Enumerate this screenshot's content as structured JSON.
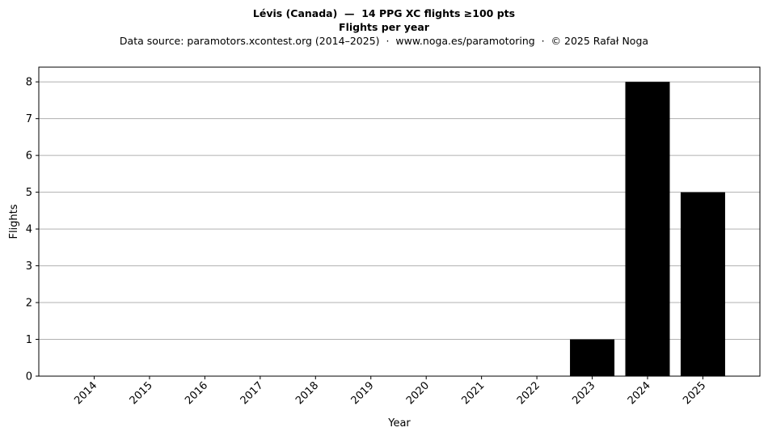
{
  "titles": {
    "line1": "Lévis (Canada)  —  14 PPG XC flights ≥100 pts",
    "line2": "Flights per year",
    "line3": "Data source: paramotors.xcontest.org (2014–2025)  ·  www.noga.es/paramotoring  ·  © 2025 Rafał Noga"
  },
  "chart_data": {
    "type": "bar",
    "title": "Lévis (Canada)  —  14 PPG XC flights ≥100 pts",
    "subtitle": "Flights per year",
    "xlabel": "Year",
    "ylabel": "Flights",
    "categories": [
      "2014",
      "2015",
      "2016",
      "2017",
      "2018",
      "2019",
      "2020",
      "2021",
      "2022",
      "2023",
      "2024",
      "2025"
    ],
    "values": [
      0,
      0,
      0,
      0,
      0,
      0,
      0,
      0,
      0,
      1,
      8,
      5
    ],
    "ylim": [
      0,
      8.4
    ],
    "yticks": [
      0,
      1,
      2,
      3,
      4,
      5,
      6,
      7,
      8
    ],
    "grid": "horizontal",
    "bar_color": "#000000",
    "grid_color": "#b0b0b0"
  }
}
